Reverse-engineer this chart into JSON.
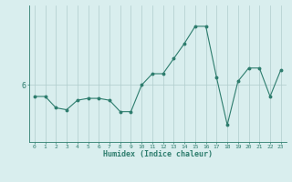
{
  "x": [
    0,
    1,
    2,
    3,
    4,
    5,
    6,
    7,
    8,
    9,
    10,
    11,
    12,
    13,
    14,
    15,
    16,
    17,
    18,
    19,
    20,
    21,
    22,
    23
  ],
  "y": [
    5.7,
    5.7,
    5.4,
    5.35,
    5.6,
    5.65,
    5.65,
    5.6,
    5.3,
    5.3,
    6.0,
    6.3,
    6.3,
    6.7,
    7.1,
    7.55,
    7.55,
    6.2,
    4.95,
    6.1,
    6.45,
    6.45,
    5.7,
    6.4
  ],
  "line_color": "#2e7d6e",
  "marker_color": "#2e7d6e",
  "bg_color": "#d9eeee",
  "grid_color": "#b0cccc",
  "axis_label_color": "#2e7d6e",
  "tick_color": "#2e7d6e",
  "xlabel": "Humidex (Indice chaleur)",
  "ytick_label": "6",
  "ytick_value": 6.0,
  "xlim": [
    -0.5,
    23.5
  ],
  "ylim": [
    4.5,
    8.1
  ],
  "figsize": [
    3.2,
    2.0
  ],
  "dpi": 100
}
